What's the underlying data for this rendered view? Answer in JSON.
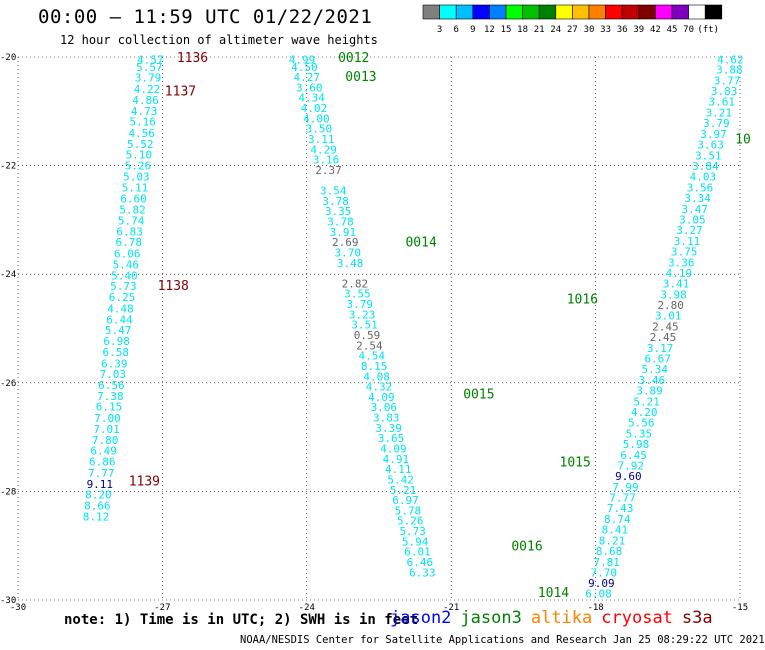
{
  "header": {
    "title": "00:00 – 11:59 UTC 01/22/2021",
    "subtitle": "12 hour collection of altimeter wave heights"
  },
  "colorbar": {
    "unit": "(ft)",
    "colors": [
      "#7f7f7f",
      "#00ffff",
      "#00bfff",
      "#0000ff",
      "#0080ff",
      "#00ff00",
      "#00c000",
      "#008000",
      "#ffff00",
      "#ffc000",
      "#ff8000",
      "#ff0000",
      "#c00000",
      "#800000",
      "#ff00ff",
      "#8000c0",
      "#ffffff",
      "#000000"
    ],
    "labels": [
      "3",
      "6",
      "9",
      "12",
      "15",
      "18",
      "21",
      "24",
      "27",
      "30",
      "33",
      "36",
      "39",
      "42",
      "45",
      "70"
    ]
  },
  "map": {
    "lon_range": [
      -30,
      -15
    ],
    "lat_range": [
      -30,
      -20
    ],
    "lon_ticks": [
      -30,
      -27,
      -24,
      -21,
      -18,
      -15
    ],
    "lat_ticks": [
      -20,
      -22,
      -24,
      -26,
      -28,
      -30
    ],
    "colors": {
      "jason2": "#0000ff",
      "jason3": "#008000",
      "altika": "#ff8000",
      "cryosat": "#ff0000",
      "s3a": "#800000",
      "low": "#00e5ee",
      "grey": "#666666",
      "navy": "#000080"
    }
  },
  "tracks": [
    {
      "color": "low",
      "pts": [
        [
          -27.25,
          -20.05,
          "4.57"
        ],
        [
          -27.27,
          -20.18,
          "5.57"
        ],
        [
          -27.3,
          -20.38,
          "3.79"
        ],
        [
          -27.32,
          -20.59,
          "4.22"
        ],
        [
          -27.35,
          -20.79,
          "4.86"
        ],
        [
          -27.38,
          -20.99,
          "4.73"
        ],
        [
          -27.41,
          -21.19,
          "5.16"
        ],
        [
          -27.43,
          -21.4,
          "4.56"
        ],
        [
          -27.46,
          -21.6,
          "5.52"
        ],
        [
          -27.49,
          -21.8,
          "5.10"
        ],
        [
          -27.51,
          -22.0,
          "5.26"
        ],
        [
          -27.54,
          -22.2,
          "5.03"
        ],
        [
          -27.57,
          -22.4,
          "5.11"
        ],
        [
          -27.6,
          -22.61,
          "6.60"
        ],
        [
          -27.62,
          -22.81,
          "5.82"
        ],
        [
          -27.65,
          -23.01,
          "5.74"
        ],
        [
          -27.68,
          -23.21,
          "6.83"
        ],
        [
          -27.7,
          -23.41,
          "6.78"
        ],
        [
          -27.73,
          -23.62,
          "6.06"
        ],
        [
          -27.76,
          -23.82,
          "5.46"
        ],
        [
          -27.79,
          -24.02,
          "5.40"
        ],
        [
          -27.81,
          -24.22,
          "5.73"
        ],
        [
          -27.84,
          -24.42,
          "6.25"
        ],
        [
          -27.87,
          -24.63,
          "4.48"
        ],
        [
          -27.89,
          -24.83,
          "6.44"
        ],
        [
          -27.92,
          -25.03,
          "5.47"
        ],
        [
          -27.95,
          -25.23,
          "6.98"
        ],
        [
          -27.97,
          -25.43,
          "6.58"
        ],
        [
          -28.0,
          -25.64,
          "6.39"
        ],
        [
          -28.03,
          -25.84,
          "7.03"
        ],
        [
          -28.06,
          -26.04,
          "6.56"
        ],
        [
          -28.08,
          -26.24,
          "7.38"
        ],
        [
          -28.11,
          -26.44,
          "6.15"
        ],
        [
          -28.14,
          -26.65,
          "7.00"
        ],
        [
          -28.16,
          -26.85,
          "7.01"
        ],
        [
          -28.19,
          -27.05,
          "7.80"
        ],
        [
          -28.22,
          -27.25,
          "6.49"
        ],
        [
          -28.25,
          -27.45,
          "6.86"
        ],
        [
          -28.27,
          -27.66,
          "7.77"
        ]
      ]
    },
    {
      "color": "navy",
      "pts": [
        [
          -28.3,
          -27.86,
          "9.11"
        ]
      ]
    },
    {
      "color": "low",
      "pts": [
        [
          -28.33,
          -28.06,
          "8.20"
        ],
        [
          -28.35,
          -28.26,
          "8.66"
        ],
        [
          -28.38,
          -28.46,
          "8.12"
        ]
      ]
    },
    {
      "color": "low",
      "pts": [
        [
          -24.1,
          -20.05,
          "4.99"
        ],
        [
          -24.05,
          -20.18,
          "4.50"
        ],
        [
          -24.0,
          -20.37,
          "4.27"
        ],
        [
          -23.95,
          -20.56,
          "3.60"
        ],
        [
          -23.9,
          -20.75,
          "4.34"
        ],
        [
          -23.85,
          -20.94,
          "4.02"
        ],
        [
          -23.8,
          -21.13,
          "4.00"
        ],
        [
          -23.75,
          -21.32,
          "3.50"
        ],
        [
          -23.7,
          -21.51,
          "3.11"
        ],
        [
          -23.65,
          -21.7,
          "4.29"
        ],
        [
          -23.6,
          -21.89,
          "3.16"
        ],
        [
          -23.45,
          -22.46,
          "3.54"
        ],
        [
          -23.4,
          -22.65,
          "3.78"
        ],
        [
          -23.35,
          -22.84,
          "3.35"
        ],
        [
          -23.3,
          -23.03,
          "3.78"
        ],
        [
          -23.25,
          -23.22,
          "3.91"
        ],
        [
          -23.15,
          -23.6,
          "3.70"
        ],
        [
          -23.1,
          -23.79,
          "3.48"
        ],
        [
          -22.95,
          -24.36,
          "3.55"
        ],
        [
          -22.9,
          -24.55,
          "3.79"
        ],
        [
          -22.85,
          -24.74,
          "3.23"
        ],
        [
          -22.8,
          -24.93,
          "3.51"
        ],
        [
          -22.65,
          -25.5,
          "4.54"
        ],
        [
          -22.6,
          -25.69,
          "8.15"
        ],
        [
          -22.55,
          -25.88,
          "4.08"
        ],
        [
          -22.5,
          -26.07,
          "4.32"
        ],
        [
          -22.45,
          -26.26,
          "4.09"
        ],
        [
          -22.4,
          -26.45,
          "3.06"
        ],
        [
          -22.35,
          -26.64,
          "3.83"
        ],
        [
          -22.3,
          -26.83,
          "3.39"
        ],
        [
          -22.25,
          -27.02,
          "3.65"
        ],
        [
          -22.2,
          -27.21,
          "4.09"
        ],
        [
          -22.15,
          -27.4,
          "4.91"
        ],
        [
          -22.1,
          -27.59,
          "4.11"
        ],
        [
          -22.05,
          -27.78,
          "5.42"
        ],
        [
          -22.0,
          -27.97,
          "5.21"
        ],
        [
          -21.95,
          -28.16,
          "6.97"
        ],
        [
          -21.9,
          -28.35,
          "5.78"
        ],
        [
          -21.85,
          -28.54,
          "5.26"
        ],
        [
          -21.8,
          -28.73,
          "5.73"
        ],
        [
          -21.75,
          -28.92,
          "5.94"
        ],
        [
          -21.7,
          -29.11,
          "6.01"
        ],
        [
          -21.65,
          -29.3,
          "6.46"
        ],
        [
          -21.6,
          -29.49,
          "6.33"
        ]
      ]
    },
    {
      "color": "grey",
      "pts": [
        [
          -23.55,
          -22.08,
          "2.37"
        ],
        [
          -23.2,
          -23.41,
          "2.69"
        ],
        [
          -23.0,
          -24.17,
          "2.82"
        ],
        [
          -22.75,
          -25.12,
          "0.59"
        ],
        [
          -22.7,
          -25.31,
          "2.54"
        ]
      ]
    },
    {
      "color": "low",
      "pts": [
        [
          -15.2,
          -20.05,
          "4.62"
        ],
        [
          -15.22,
          -20.23,
          "3.88"
        ],
        [
          -15.27,
          -20.43,
          "3.77"
        ],
        [
          -15.33,
          -20.63,
          "3.83"
        ],
        [
          -15.38,
          -20.82,
          "3.61"
        ],
        [
          -15.44,
          -21.02,
          "3.21"
        ],
        [
          -15.49,
          -21.22,
          "3.79"
        ],
        [
          -15.55,
          -21.42,
          "3.97"
        ],
        [
          -15.61,
          -21.61,
          "3.63"
        ],
        [
          -15.66,
          -21.81,
          "3.51"
        ],
        [
          -15.72,
          -22.01,
          "3.84"
        ],
        [
          -15.77,
          -22.2,
          "4.03"
        ],
        [
          -15.83,
          -22.4,
          "3.56"
        ],
        [
          -15.88,
          -22.6,
          "3.34"
        ],
        [
          -15.94,
          -22.8,
          "3.47"
        ],
        [
          -15.99,
          -22.99,
          "3.05"
        ],
        [
          -16.05,
          -23.19,
          "3.27"
        ],
        [
          -16.1,
          -23.39,
          "3.11"
        ],
        [
          -16.16,
          -23.58,
          "3.75"
        ],
        [
          -16.22,
          -23.78,
          "3.36"
        ],
        [
          -16.27,
          -23.98,
          "4.19"
        ],
        [
          -16.33,
          -24.17,
          "3.41"
        ],
        [
          -16.38,
          -24.37,
          "3.98"
        ],
        [
          -16.49,
          -24.76,
          "3.01"
        ],
        [
          -16.66,
          -25.36,
          "3.17"
        ],
        [
          -16.71,
          -25.55,
          "6.67"
        ],
        [
          -16.77,
          -25.75,
          "5.34"
        ],
        [
          -16.83,
          -25.95,
          "3.46"
        ],
        [
          -16.88,
          -26.14,
          "3.89"
        ],
        [
          -16.94,
          -26.34,
          "5.21"
        ],
        [
          -16.99,
          -26.54,
          "4.20"
        ],
        [
          -17.05,
          -26.73,
          "5.56"
        ],
        [
          -17.1,
          -26.93,
          "5.35"
        ],
        [
          -17.16,
          -27.13,
          "5.98"
        ],
        [
          -17.21,
          -27.33,
          "6.45"
        ],
        [
          -17.27,
          -27.52,
          "7.92"
        ],
        [
          -17.38,
          -27.92,
          "7.99"
        ],
        [
          -17.44,
          -28.11,
          "7.77"
        ],
        [
          -17.49,
          -28.31,
          "7.43"
        ],
        [
          -17.55,
          -28.51,
          "8.74"
        ],
        [
          -17.6,
          -28.7,
          "8.41"
        ],
        [
          -17.66,
          -28.9,
          "8.21"
        ],
        [
          -17.72,
          -29.1,
          "8.68"
        ],
        [
          -17.77,
          -29.3,
          "7.81"
        ],
        [
          -17.83,
          -29.49,
          "7.70"
        ],
        [
          -17.94,
          -29.88,
          "6.08"
        ]
      ]
    },
    {
      "color": "grey",
      "pts": [
        [
          -16.44,
          -24.57,
          "2.80"
        ],
        [
          -16.55,
          -24.96,
          "2.45"
        ],
        [
          -16.6,
          -25.16,
          "2.45"
        ]
      ]
    },
    {
      "color": "navy",
      "pts": [
        [
          -17.32,
          -27.72,
          "9.60"
        ],
        [
          -17.88,
          -29.69,
          "9.09"
        ]
      ]
    }
  ],
  "track_labels": [
    [
      -26.7,
      -20.0,
      "1136",
      "s3a"
    ],
    [
      -26.95,
      -20.62,
      "1137",
      "s3a"
    ],
    [
      -27.1,
      -24.2,
      "1138",
      "s3a"
    ],
    [
      -27.7,
      -27.8,
      "1139",
      "s3a"
    ],
    [
      -23.35,
      -20.0,
      "0012",
      "jason3"
    ],
    [
      -23.2,
      -20.35,
      "0013",
      "jason3"
    ],
    [
      -21.95,
      -23.4,
      "0014",
      "jason3"
    ],
    [
      -20.75,
      -26.2,
      "0015",
      "jason3"
    ],
    [
      -18.6,
      -24.45,
      "1016",
      "jason3"
    ],
    [
      -18.75,
      -27.45,
      "1015",
      "jason3"
    ],
    [
      -15.1,
      -21.5,
      "10",
      "jason3"
    ],
    [
      -19.75,
      -29.0,
      "0016",
      "jason3"
    ],
    [
      -19.2,
      -29.85,
      "1014",
      "jason3"
    ]
  ],
  "footer": {
    "note": "note: 1) Time is in UTC; 2) SWH is in feet",
    "missions": [
      {
        "name": "jason2",
        "color": "#0000ff"
      },
      {
        "name": "jason3",
        "color": "#008000"
      },
      {
        "name": "altika",
        "color": "#ff8000"
      },
      {
        "name": "cryosat",
        "color": "#ff0000"
      },
      {
        "name": "s3a",
        "color": "#800000"
      }
    ],
    "credit": "NOAA/NESDIS Center for Satellite Applications and Research   Jan 25 08:29:22 UTC 2021"
  }
}
